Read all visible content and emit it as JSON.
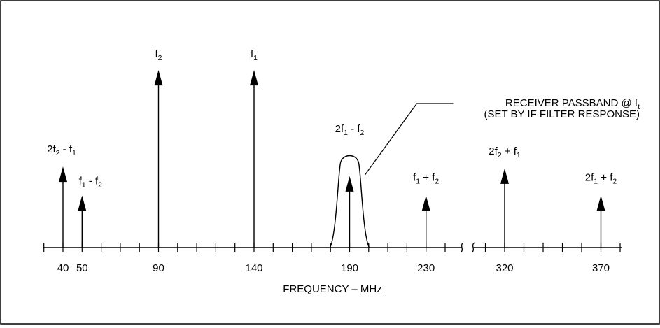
{
  "axis": {
    "label": "FREQUENCY – MHz",
    "tick_labels": [
      "40",
      "50",
      "90",
      "140",
      "190",
      "230",
      "320",
      "370"
    ]
  },
  "spectral_lines": [
    {
      "freq": 40,
      "amplitude": 0.42,
      "label": {
        "parts": [
          "2f",
          "2",
          " - f",
          "1"
        ]
      }
    },
    {
      "freq": 50,
      "amplitude": 0.27,
      "label": {
        "parts": [
          "f",
          "1",
          " - f",
          "2"
        ]
      }
    },
    {
      "freq": 90,
      "amplitude": 0.92,
      "label": {
        "parts": [
          "f",
          "2"
        ]
      }
    },
    {
      "freq": 140,
      "amplitude": 0.92,
      "label": {
        "parts": [
          "f",
          "1"
        ]
      }
    },
    {
      "freq": 190,
      "amplitude": 0.37,
      "label": {
        "parts": [
          "2f",
          "1",
          " - f",
          "2"
        ]
      }
    },
    {
      "freq": 230,
      "amplitude": 0.27,
      "label": {
        "parts": [
          "f",
          "1",
          " + f",
          "2"
        ]
      }
    },
    {
      "freq": 320,
      "amplitude": 0.41,
      "label": {
        "parts": [
          "2f",
          "2",
          " + f",
          "1"
        ]
      }
    },
    {
      "freq": 370,
      "amplitude": 0.27,
      "label": {
        "parts": [
          "2f",
          "1",
          " + f",
          "2"
        ]
      }
    }
  ],
  "passband": {
    "center_freq": 190,
    "annotation_line1": {
      "parts": [
        "RECEIVER PASSBAND @ f",
        "t"
      ]
    },
    "annotation_line2": "(SET BY IF FILTER RESPONSE)"
  },
  "axis_break_between": [
    230,
    320
  ]
}
